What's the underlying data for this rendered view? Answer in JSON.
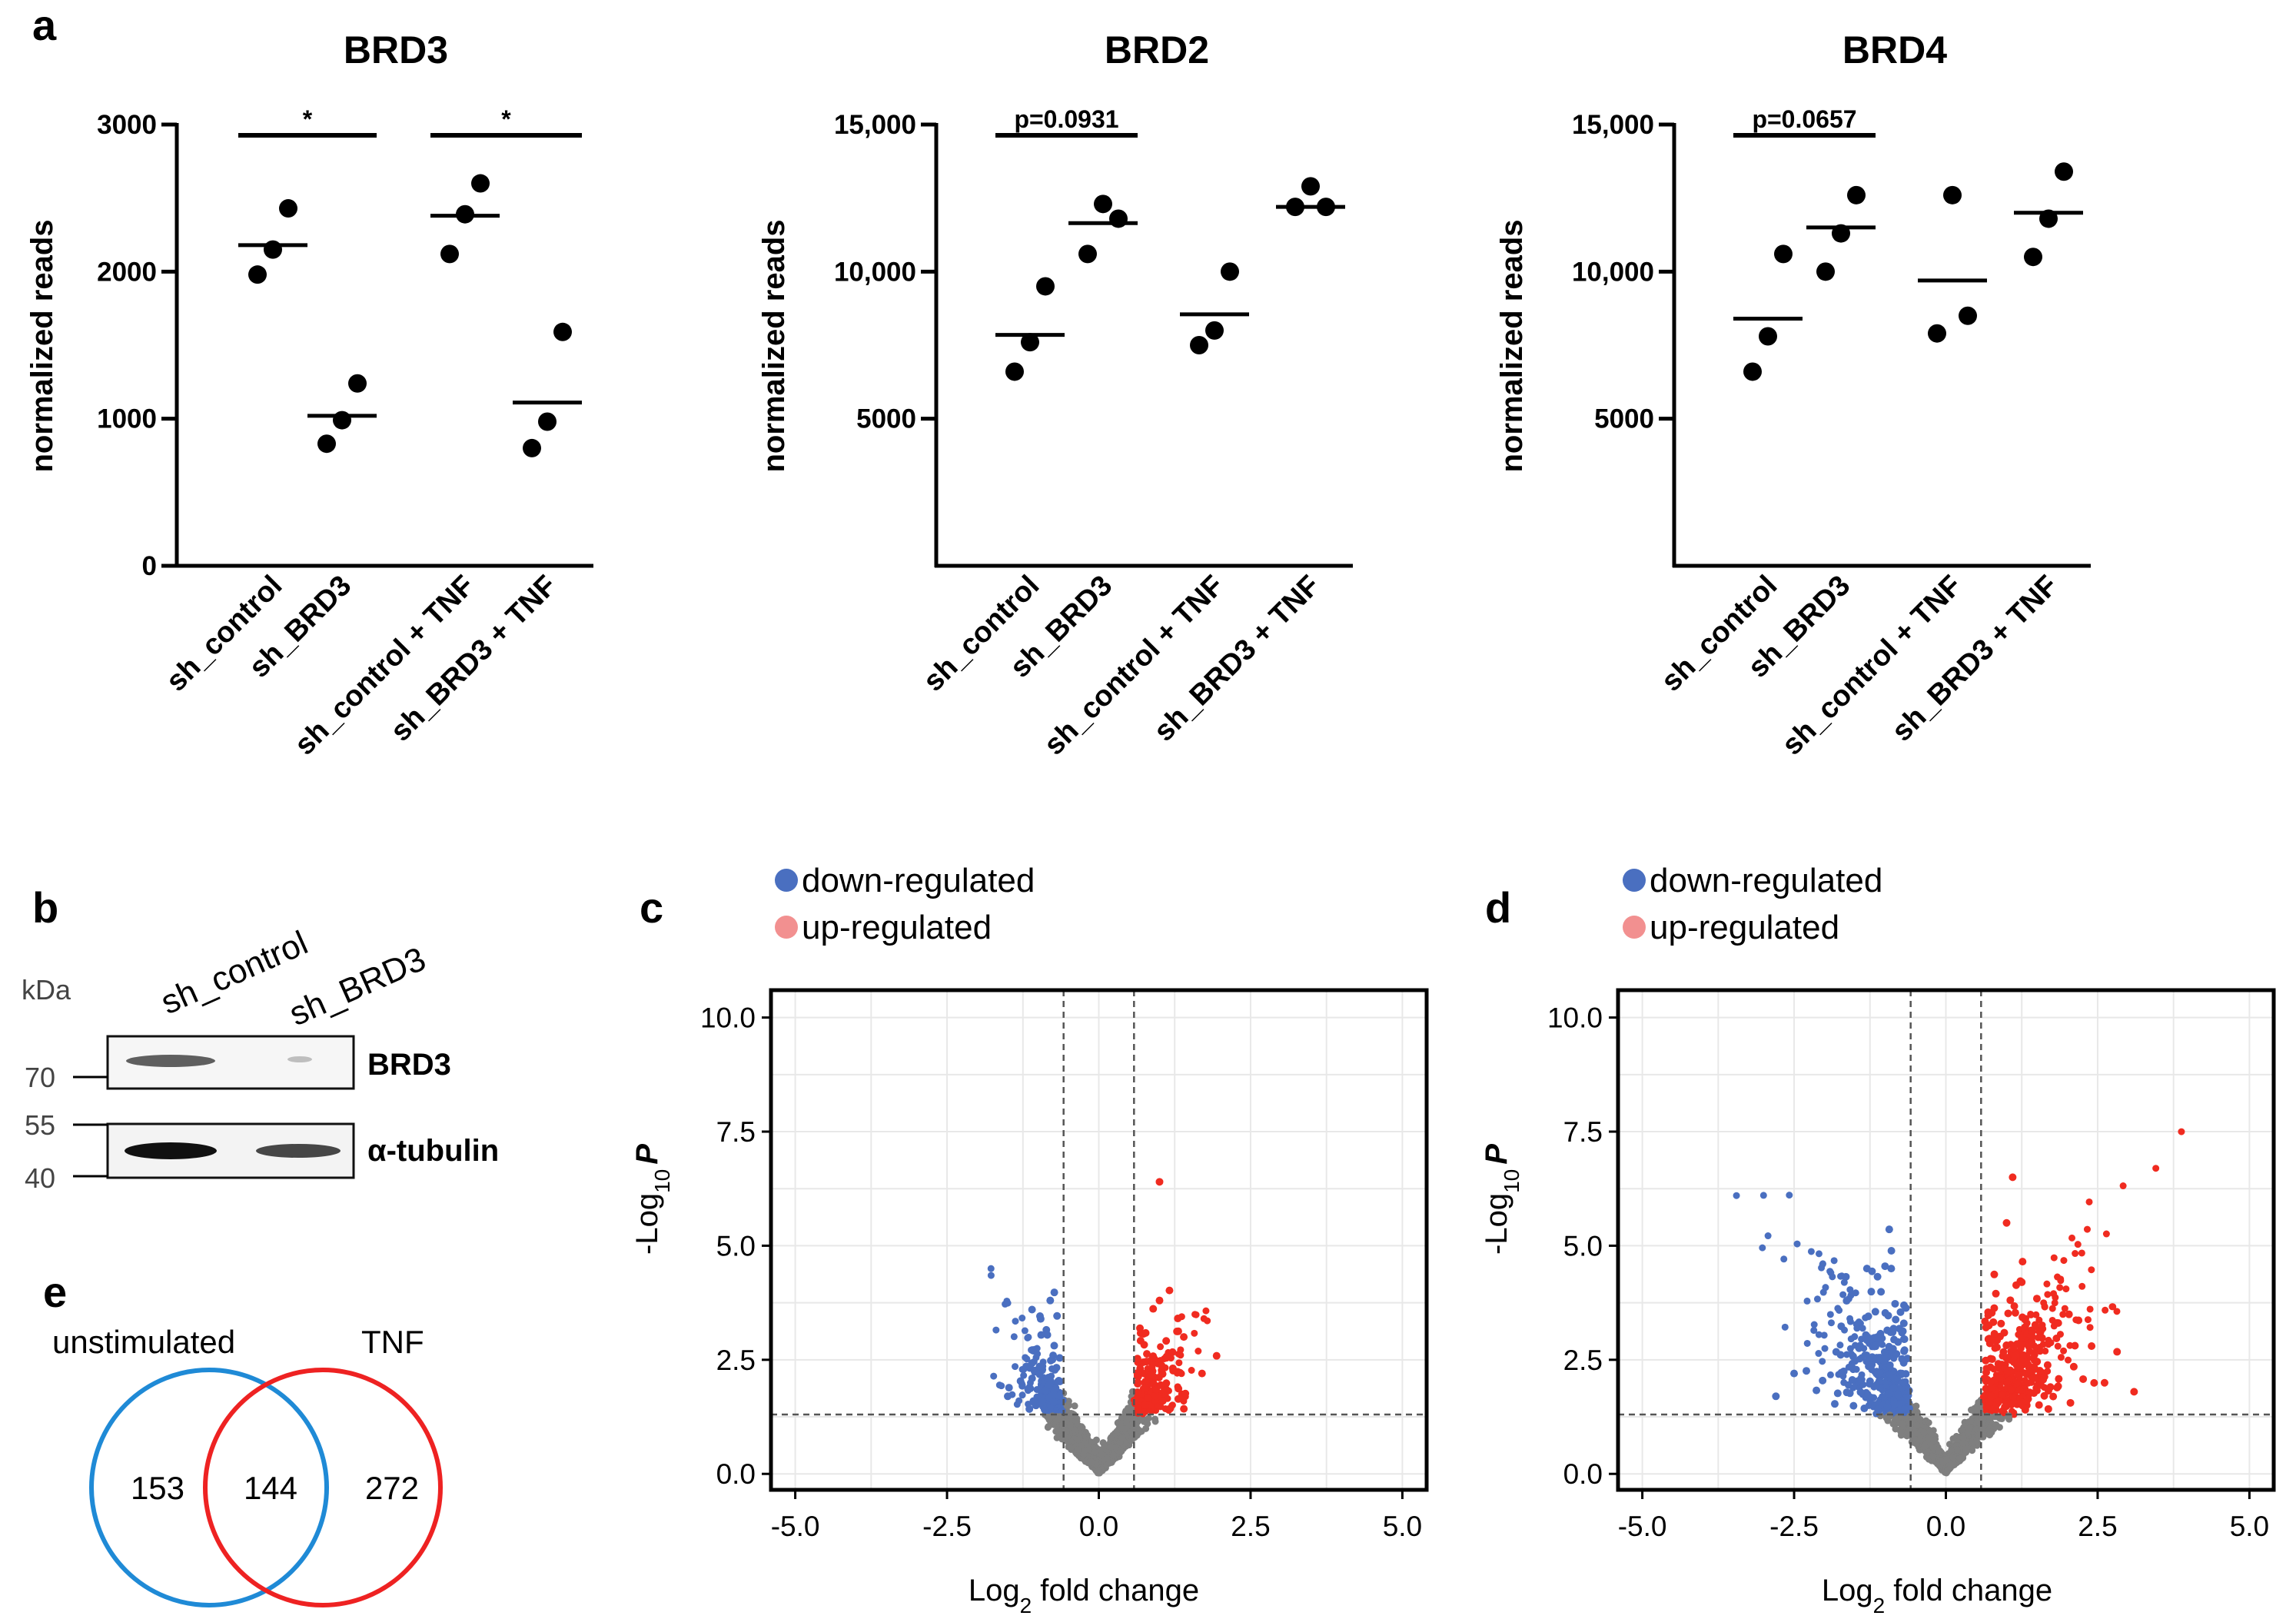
{
  "panel_labels": {
    "a": "a",
    "b": "b",
    "c": "c",
    "d": "d",
    "e": "e"
  },
  "chart_data": [
    {
      "id": "brd3",
      "type": "scatter",
      "title": "BRD3",
      "ylabel": "normalized reads",
      "categories": [
        "sh_control",
        "sh_BRD3",
        "sh_control + TNF",
        "sh_BRD3 + TNF"
      ],
      "ylim": [
        0,
        3000
      ],
      "yticks": [
        0,
        1000,
        2000,
        3000
      ],
      "ytick_labels": [
        "0",
        "1000",
        "2000",
        "3000"
      ],
      "points": [
        [
          1980,
          2150,
          2430
        ],
        [
          830,
          990,
          1240
        ],
        [
          2120,
          2390,
          2600
        ],
        [
          800,
          980,
          1590
        ]
      ],
      "means": [
        2180,
        1020,
        2380,
        1110
      ],
      "brackets": [
        {
          "from": 0,
          "to": 1,
          "label": "*"
        },
        {
          "from": 2,
          "to": 3,
          "label": "*"
        }
      ]
    },
    {
      "id": "brd2",
      "type": "scatter",
      "title": "BRD2",
      "ylabel": "normalized reads",
      "categories": [
        "sh_control",
        "sh_BRD3",
        "sh_control + TNF",
        "sh_BRD3 + TNF"
      ],
      "ylim": [
        0,
        15000
      ],
      "yticks": [
        5000,
        10000,
        15000
      ],
      "ytick_labels": [
        "5000",
        "10,000",
        "15,000"
      ],
      "points": [
        [
          6600,
          7600,
          9500
        ],
        [
          10600,
          12300,
          11800
        ],
        [
          7500,
          8000,
          10000
        ],
        [
          12200,
          12900,
          12200
        ]
      ],
      "means": [
        7850,
        11650,
        8550,
        12200
      ],
      "brackets": [
        {
          "from": 0,
          "to": 1,
          "label": "p=0.0931"
        }
      ]
    },
    {
      "id": "brd4",
      "type": "scatter",
      "title": "BRD4",
      "ylabel": "normalized reads",
      "categories": [
        "sh_control",
        "sh_BRD3",
        "sh_control + TNF",
        "sh_BRD3 + TNF"
      ],
      "ylim": [
        0,
        15000
      ],
      "yticks": [
        5000,
        10000,
        15000
      ],
      "ytick_labels": [
        "5000",
        "10,000",
        "15,000"
      ],
      "points": [
        [
          6600,
          7800,
          10600
        ],
        [
          10000,
          11300,
          12600
        ],
        [
          7900,
          12600,
          8500
        ],
        [
          10500,
          11800,
          13400
        ]
      ],
      "means": [
        8400,
        11500,
        9700,
        12000
      ],
      "brackets": [
        {
          "from": 0,
          "to": 1,
          "label": "p=0.0657"
        }
      ]
    },
    {
      "id": "volc_c",
      "type": "scatter",
      "subtype": "volcano",
      "xlabel_main": "Log",
      "xlabel_sub": "2",
      "xlabel_rest": " fold change",
      "ylabel_main": "-Log",
      "ylabel_sub": "10",
      "ylabel_var": "P",
      "xlim": [
        -5.4,
        5.4
      ],
      "ylim": [
        -0.35,
        10.6
      ],
      "xticks": [
        -5,
        -2.5,
        0,
        2.5,
        5
      ],
      "xtick_labels": [
        "-5.0",
        "-2.5",
        "0.0",
        "2.5",
        "5.0"
      ],
      "yticks": [
        0,
        2.5,
        5,
        7.5,
        10
      ],
      "ytick_labels": [
        "0.0",
        "2.5",
        "5.0",
        "7.5",
        "10.0"
      ],
      "fc_threshold": 0.58,
      "p_threshold": 1.3,
      "legend": [
        "down-regulated",
        "up-regulated"
      ],
      "colors": {
        "down": "#4a6fc0",
        "up": "#f02b20",
        "ns": "#7f7f7f"
      }
    },
    {
      "id": "volc_d",
      "type": "scatter",
      "subtype": "volcano",
      "xlabel_main": "Log",
      "xlabel_sub": "2",
      "xlabel_rest": " fold change",
      "ylabel_main": "-Log",
      "ylabel_sub": "10",
      "ylabel_var": "P",
      "xlim": [
        -5.4,
        5.4
      ],
      "ylim": [
        -0.35,
        10.6
      ],
      "xticks": [
        -5,
        -2.5,
        0,
        2.5,
        5
      ],
      "xtick_labels": [
        "-5.0",
        "-2.5",
        "0.0",
        "2.5",
        "5.0"
      ],
      "yticks": [
        0,
        2.5,
        5,
        7.5,
        10
      ],
      "ytick_labels": [
        "0.0",
        "2.5",
        "5.0",
        "7.5",
        "10.0"
      ],
      "fc_threshold": 0.58,
      "p_threshold": 1.3,
      "legend": [
        "down-regulated",
        "up-regulated"
      ],
      "colors": {
        "down": "#4a6fc0",
        "up": "#f02b20",
        "ns": "#7f7f7f"
      }
    }
  ],
  "western_blot": {
    "unit": "kDa",
    "lanes": [
      "sh_control",
      "sh_BRD3"
    ],
    "markers": [
      "70",
      "55",
      "40"
    ],
    "bands": [
      "BRD3",
      "α-tubulin"
    ]
  },
  "venn": {
    "labels": [
      "unstimulated",
      "TNF"
    ],
    "counts": {
      "left_only": "153",
      "both": "144",
      "right_only": "272"
    },
    "colors": {
      "left": "#1f8ad6",
      "right": "#ee2222"
    }
  }
}
